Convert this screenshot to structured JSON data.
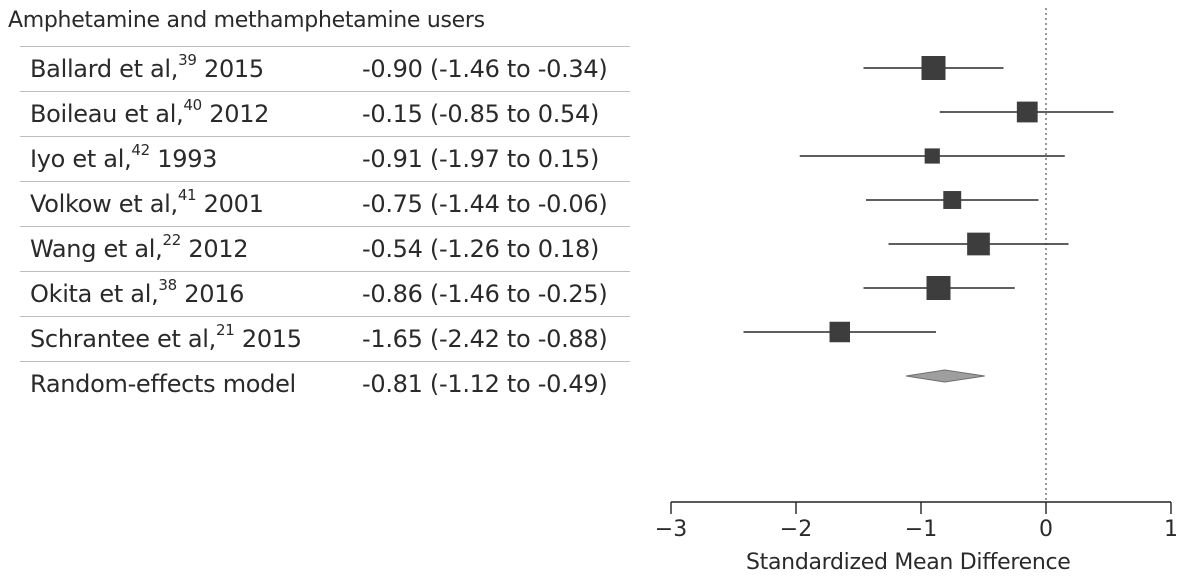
{
  "chart_data": {
    "type": "forest",
    "group_title": "Amphetamine and methamphetamine users",
    "xlabel": "Standardized Mean Difference",
    "xlim": [
      -3,
      1
    ],
    "xticks": [
      "−3",
      "−2",
      "−1",
      "0",
      "1"
    ],
    "reference_line": 0,
    "studies": [
      {
        "label": "Ballard et al,",
        "ref": "39",
        "year": "2015",
        "ci_text": "-0.90 (-1.46 to -0.34)",
        "estimate": -0.9,
        "lower": -1.46,
        "upper": -0.34,
        "weight": 1.0
      },
      {
        "label": "Boileau et al,",
        "ref": "40",
        "year": "2012",
        "ci_text": "-0.15 (-0.85 to 0.54)",
        "estimate": -0.15,
        "lower": -0.85,
        "upper": 0.54,
        "weight": 0.8
      },
      {
        "label": "Iyo et al,",
        "ref": "42",
        "year": "1993",
        "ci_text": "-0.91 (-1.97 to 0.15)",
        "estimate": -0.91,
        "lower": -1.97,
        "upper": 0.15,
        "weight": 0.45
      },
      {
        "label": "Volkow et al,",
        "ref": "41",
        "year": "2001",
        "ci_text": "-0.75 (-1.44 to -0.06)",
        "estimate": -0.75,
        "lower": -1.44,
        "upper": -0.06,
        "weight": 0.62
      },
      {
        "label": "Wang et al,",
        "ref": "22",
        "year": "2012",
        "ci_text": "-0.54 (-1.26 to 0.18)",
        "estimate": -0.54,
        "lower": -1.26,
        "upper": 0.18,
        "weight": 0.92
      },
      {
        "label": "Okita et al,",
        "ref": "38",
        "year": "2016",
        "ci_text": "-0.86 (-1.46 to -0.25)",
        "estimate": -0.86,
        "lower": -1.46,
        "upper": -0.25,
        "weight": 1.0
      },
      {
        "label": "Schrantee et al,",
        "ref": "21",
        "year": "2015",
        "ci_text": "-1.65 (-2.42 to -0.88)",
        "estimate": -1.65,
        "lower": -2.42,
        "upper": -0.88,
        "weight": 0.78
      }
    ],
    "pooled": {
      "label": "Random-effects model",
      "ci_text": "-0.81 (-1.12 to -0.49)",
      "estimate": -0.81,
      "lower": -1.12,
      "upper": -0.49
    },
    "colors": {
      "marker": "#3d3d3d",
      "diamond": "#9e9e9e",
      "line": "#2a2a2a",
      "rule": "#bdbdbd"
    }
  }
}
